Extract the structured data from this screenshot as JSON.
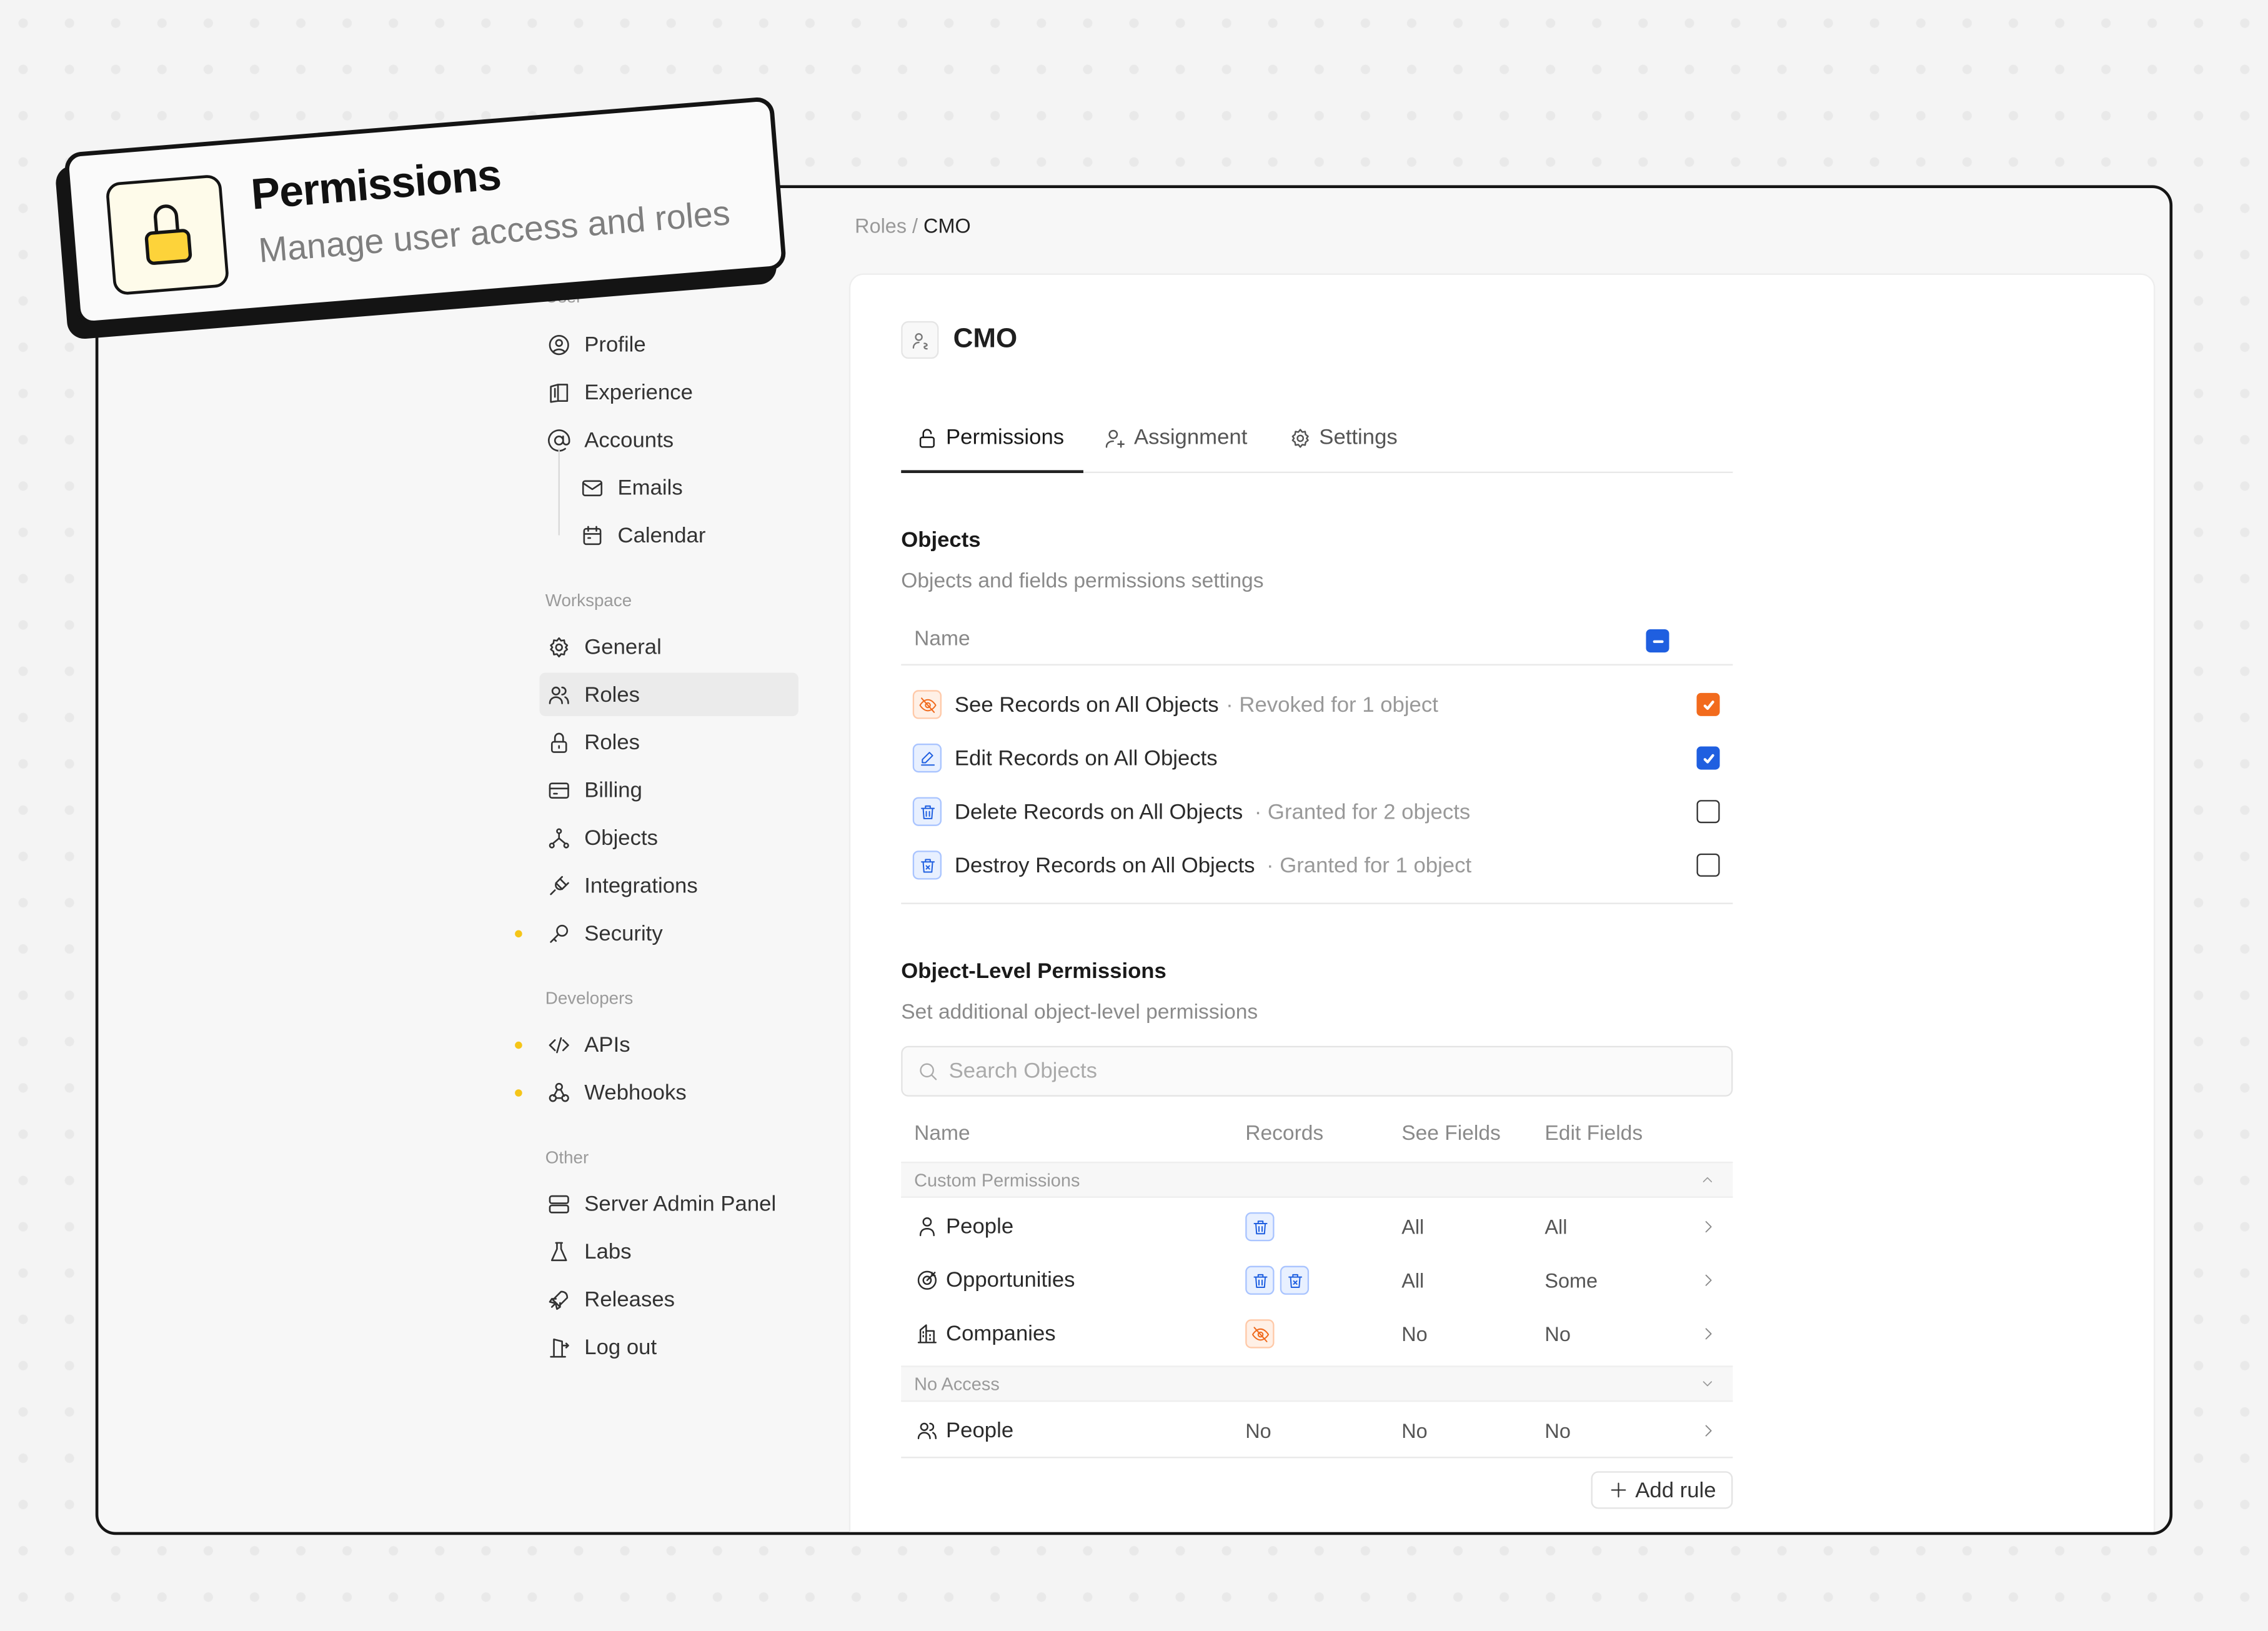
{
  "banner": {
    "title": "Permissions",
    "subtitle": "Manage user access and roles",
    "icon": "lock-icon",
    "accent": "#fdd33a"
  },
  "sidebar": {
    "sections": [
      {
        "label": "User",
        "items": [
          {
            "label": "Profile",
            "icon": "user-circle-icon"
          },
          {
            "label": "Experience",
            "icon": "book-icon"
          },
          {
            "label": "Accounts",
            "icon": "at-icon"
          },
          {
            "label": "Emails",
            "icon": "mail-icon"
          },
          {
            "label": "Calendar",
            "icon": "calendar-icon"
          }
        ]
      },
      {
        "label": "Workspace",
        "items": [
          {
            "label": "General",
            "icon": "gear-icon"
          },
          {
            "label": "Roles",
            "icon": "users-icon",
            "active": true
          },
          {
            "label": "Roles",
            "icon": "lock-icon"
          },
          {
            "label": "Billing",
            "icon": "credit-card-icon"
          },
          {
            "label": "Objects",
            "icon": "hierarchy-icon"
          },
          {
            "label": "Integrations",
            "icon": "plug-icon"
          },
          {
            "label": "Security",
            "icon": "key-icon",
            "dot": true
          }
        ]
      },
      {
        "label": "Developers",
        "items": [
          {
            "label": "APIs",
            "icon": "code-icon",
            "dot": true
          },
          {
            "label": "Webhooks",
            "icon": "webhook-icon",
            "dot": true
          }
        ]
      },
      {
        "label": "Other",
        "items": [
          {
            "label": "Server Admin Panel",
            "icon": "server-icon"
          },
          {
            "label": "Labs",
            "icon": "flask-icon"
          },
          {
            "label": "Releases",
            "icon": "rocket-icon"
          },
          {
            "label": "Log out",
            "icon": "logout-icon"
          }
        ]
      }
    ]
  },
  "breadcrumb": {
    "parent": "Roles",
    "separator": "/",
    "current": "CMO"
  },
  "role": {
    "title": "CMO"
  },
  "tabs": [
    {
      "label": "Permissions",
      "active": true
    },
    {
      "label": "Assignment"
    },
    {
      "label": "Settings"
    }
  ],
  "objects": {
    "heading": "Objects",
    "subtitle": "Objects and fields permissions settings",
    "name_header": "Name",
    "rows": [
      {
        "label": "See Records on All Objects",
        "note": "· Revoked for 1 object",
        "state": "checked",
        "color": "#f26b1d"
      },
      {
        "label": "Edit Records on All Objects",
        "note": "",
        "state": "checked",
        "color": "#1f5fe0"
      },
      {
        "label": "Delete Records on All Objects",
        "note": "· Granted for 2 objects",
        "state": "unchecked"
      },
      {
        "label": "Destroy Records on All Objects",
        "note": "· Granted for 1 object",
        "state": "unchecked"
      }
    ]
  },
  "object_level": {
    "heading": "Object-Level Permissions",
    "subtitle": "Set additional object-level permissions",
    "search_placeholder": "Search Objects",
    "columns": [
      "Name",
      "Records",
      "See Fields",
      "Edit Fields"
    ],
    "groups": [
      {
        "label": "Custom Permissions",
        "expanded": true,
        "rows": [
          {
            "name": "People",
            "records": "delete",
            "see": "All",
            "edit": "All"
          },
          {
            "name": "Opportunities",
            "records": "delete, destroy",
            "see": "All",
            "edit": "Some"
          },
          {
            "name": "Companies",
            "records": "hidden",
            "see": "No",
            "edit": "No"
          }
        ]
      },
      {
        "label": "No Access",
        "expanded": false,
        "rows": [
          {
            "name": "People",
            "records": "No",
            "see": "No",
            "edit": "No"
          }
        ]
      }
    ],
    "add_rule": "Add rule"
  }
}
